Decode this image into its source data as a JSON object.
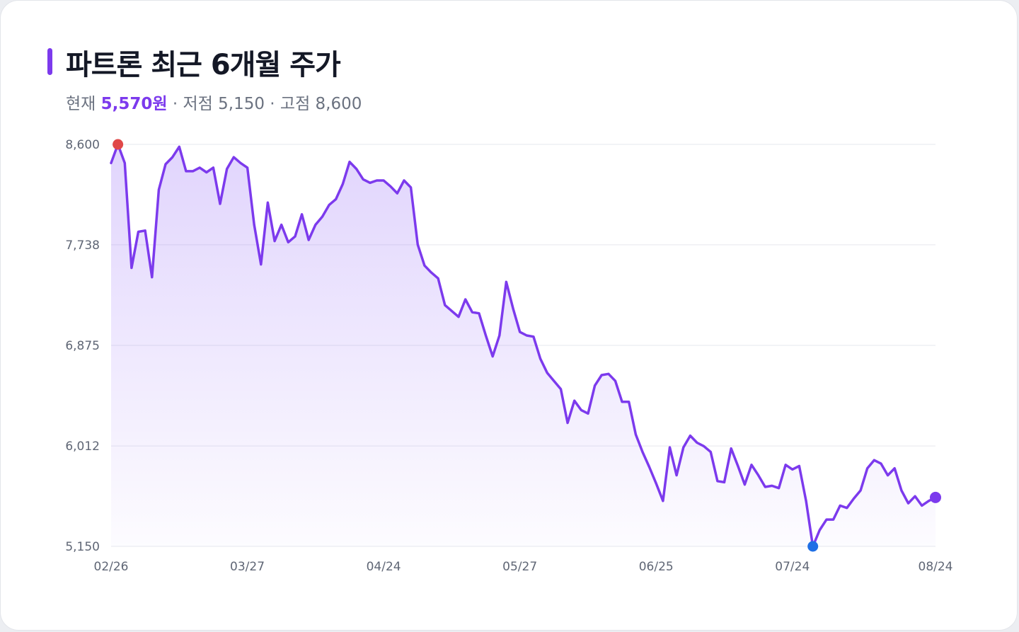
{
  "header": {
    "title": "파트론 최근 6개월 주가",
    "current_label": "현재",
    "current_value": "5,570원",
    "low_text": "· 저점 5,150",
    "high_text": "· 고점 8,600"
  },
  "colors": {
    "line": "#7c3aed",
    "high_marker": "#e04848",
    "low_marker": "#1f6fe5",
    "last_marker": "#7c3aed"
  },
  "chart_data": {
    "type": "area",
    "title": "파트론 최근 6개월 주가",
    "xlabel": "",
    "ylabel": "",
    "ylim": [
      5150,
      8600
    ],
    "y_ticks": [
      {
        "value": 8600,
        "label": "8,600"
      },
      {
        "value": 7738,
        "label": "7,738"
      },
      {
        "value": 6875,
        "label": "6,875"
      },
      {
        "value": 6012,
        "label": "6,012"
      },
      {
        "value": 5150,
        "label": "5,150"
      }
    ],
    "x_ticks": [
      {
        "index": 0,
        "label": "02/26"
      },
      {
        "index": 20,
        "label": "03/27"
      },
      {
        "index": 40,
        "label": "04/24"
      },
      {
        "index": 60,
        "label": "05/27"
      },
      {
        "index": 80,
        "label": "06/25"
      },
      {
        "index": 100,
        "label": "07/24"
      },
      {
        "index": 121,
        "label": "08/24"
      }
    ],
    "grid": true,
    "high": {
      "index": 1,
      "value": 8600
    },
    "low": {
      "index": 103,
      "value": 5150
    },
    "last": {
      "index": 121,
      "value": 5570
    },
    "values": [
      8440,
      8600,
      8440,
      7540,
      7850,
      7860,
      7460,
      8210,
      8430,
      8490,
      8580,
      8370,
      8370,
      8400,
      8360,
      8400,
      8090,
      8390,
      8490,
      8440,
      8400,
      7910,
      7570,
      8100,
      7770,
      7910,
      7760,
      7810,
      8000,
      7780,
      7910,
      7980,
      8080,
      8130,
      8260,
      8450,
      8390,
      8300,
      8270,
      8290,
      8290,
      8240,
      8180,
      8290,
      8230,
      7740,
      7560,
      7500,
      7450,
      7220,
      7170,
      7120,
      7270,
      7160,
      7150,
      6960,
      6780,
      6960,
      7420,
      7190,
      6990,
      6960,
      6950,
      6760,
      6640,
      6570,
      6500,
      6210,
      6400,
      6320,
      6290,
      6530,
      6620,
      6630,
      6570,
      6390,
      6390,
      6110,
      5960,
      5830,
      5690,
      5540,
      6000,
      5760,
      6000,
      6100,
      6040,
      6010,
      5960,
      5710,
      5700,
      5990,
      5840,
      5680,
      5850,
      5760,
      5660,
      5670,
      5650,
      5850,
      5810,
      5840,
      5540,
      5150,
      5290,
      5380,
      5380,
      5500,
      5480,
      5560,
      5630,
      5820,
      5890,
      5860,
      5760,
      5820,
      5630,
      5520,
      5580,
      5500,
      5540,
      5570
    ]
  }
}
